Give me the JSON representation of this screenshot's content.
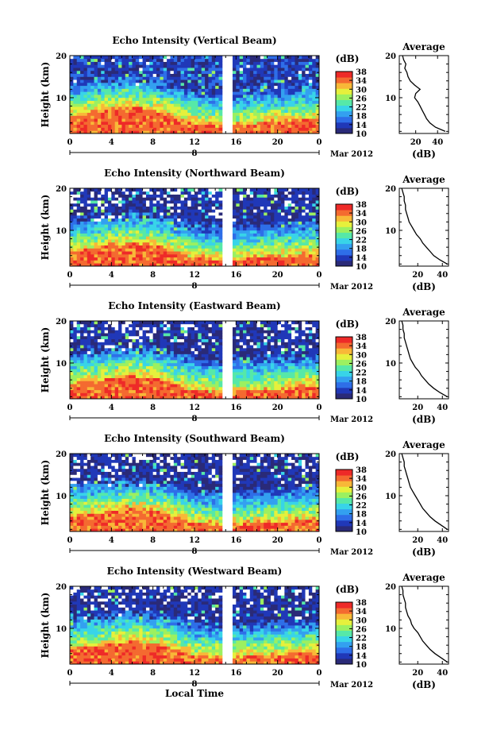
{
  "figure": {
    "xlabel": "Local Time",
    "date_label": "Mar 2012",
    "day_label": "8",
    "colorbar_unit": "(dB)",
    "colorbar_ticks": [
      "10",
      "14",
      "18",
      "22",
      "26",
      "30",
      "34",
      "38"
    ],
    "colorbar_range": [
      10,
      38
    ],
    "colormap": [
      "#2a2a78",
      "#2038b8",
      "#2e6ee8",
      "#33a0f0",
      "#38d4e8",
      "#56e8a8",
      "#9cf060",
      "#e6f03c",
      "#f8b838",
      "#f46a30",
      "#ee2a28"
    ],
    "profile_title": "Average",
    "profile_xlabel": "(dB)"
  },
  "chart_data": [
    {
      "type": "heatmap",
      "title": "Echo Intensity (Vertical Beam)",
      "ylabel": "Height (km)",
      "x_ticks": [
        "0",
        "4",
        "8",
        "12",
        "16",
        "20",
        "0"
      ],
      "xlim": [
        0,
        24
      ],
      "y_ticks": [
        "10",
        "20"
      ],
      "ylim": [
        1.5,
        20
      ],
      "data_gap_hours": [
        14.8,
        15.5
      ],
      "surface_layer_top_km": [
        5.5,
        7,
        8,
        6.5,
        4,
        3,
        4,
        4.5,
        5
      ],
      "profile": {
        "x_ticks": [
          "20",
          "40"
        ],
        "xlim": [
          5,
          50
        ],
        "height_km": [
          2,
          3,
          4,
          5,
          6,
          7,
          8,
          9,
          10,
          11,
          12,
          13,
          14,
          15,
          16,
          17,
          18,
          19,
          20
        ],
        "values_db": [
          47,
          38,
          33,
          30,
          28,
          26,
          24,
          22,
          19,
          20,
          24,
          19,
          15,
          13,
          12,
          10,
          11,
          9,
          8
        ]
      }
    },
    {
      "type": "heatmap",
      "title": "Echo Intensity (Northward Beam)",
      "ylabel": "Height (km)",
      "x_ticks": [
        "0",
        "4",
        "8",
        "12",
        "16",
        "20",
        "0"
      ],
      "xlim": [
        0,
        24
      ],
      "y_ticks": [
        "10",
        "20"
      ],
      "ylim": [
        1.5,
        20
      ],
      "data_gap_hours": [
        14.8,
        15.5
      ],
      "surface_layer_top_km": [
        5,
        6,
        7,
        6,
        3.5,
        3,
        3.5,
        4,
        4.5
      ],
      "profile": {
        "x_ticks": [
          "20",
          "40"
        ],
        "xlim": [
          5,
          45
        ],
        "height_km": [
          2,
          3,
          4,
          5,
          6,
          7,
          8,
          9,
          10,
          11,
          12,
          13,
          14,
          15,
          16,
          17,
          18,
          19,
          20
        ],
        "values_db": [
          44,
          38,
          33,
          30,
          27,
          24,
          22,
          19,
          17,
          15,
          13,
          12,
          11,
          10,
          10,
          9,
          9,
          8,
          7
        ]
      }
    },
    {
      "type": "heatmap",
      "title": "Echo Intensity (Eastward Beam)",
      "ylabel": "Height (km)",
      "x_ticks": [
        "0",
        "4",
        "8",
        "12",
        "16",
        "20",
        "0"
      ],
      "xlim": [
        0,
        24
      ],
      "y_ticks": [
        "10",
        "20"
      ],
      "ylim": [
        1.5,
        20
      ],
      "data_gap_hours": [
        14.8,
        15.5
      ],
      "surface_layer_top_km": [
        5,
        6,
        7,
        6,
        3.5,
        3,
        3.5,
        4,
        4.5
      ],
      "profile": {
        "x_ticks": [
          "20",
          "40"
        ],
        "xlim": [
          5,
          45
        ],
        "height_km": [
          2,
          3,
          4,
          5,
          6,
          7,
          8,
          9,
          10,
          11,
          12,
          13,
          14,
          15,
          16,
          17,
          18,
          19,
          20
        ],
        "values_db": [
          44,
          38,
          33,
          29,
          26,
          23,
          21,
          18,
          16,
          14,
          13,
          12,
          11,
          10,
          9,
          9,
          8,
          8,
          7
        ]
      }
    },
    {
      "type": "heatmap",
      "title": "Echo Intensity (Southward Beam)",
      "ylabel": "Height (km)",
      "x_ticks": [
        "0",
        "4",
        "8",
        "12",
        "16",
        "20",
        "0"
      ],
      "xlim": [
        0,
        24
      ],
      "y_ticks": [
        "10",
        "20"
      ],
      "ylim": [
        1.5,
        20
      ],
      "data_gap_hours": [
        14.8,
        15.5
      ],
      "surface_layer_top_km": [
        5,
        6,
        7,
        6,
        3.5,
        3,
        3.5,
        4,
        4.5
      ],
      "profile": {
        "x_ticks": [
          "20",
          "40"
        ],
        "xlim": [
          5,
          45
        ],
        "height_km": [
          2,
          3,
          4,
          5,
          6,
          7,
          8,
          9,
          10,
          11,
          12,
          13,
          14,
          15,
          16,
          17,
          18,
          19,
          20
        ],
        "values_db": [
          44,
          39,
          34,
          30,
          27,
          24,
          22,
          20,
          18,
          16,
          14,
          13,
          12,
          11,
          10,
          9,
          9,
          8,
          7
        ]
      }
    },
    {
      "type": "heatmap",
      "title": "Echo Intensity (Westward Beam)",
      "ylabel": "Height (km)",
      "x_ticks": [
        "0",
        "4",
        "8",
        "12",
        "16",
        "20",
        "0"
      ],
      "xlim": [
        0,
        24
      ],
      "y_ticks": [
        "10",
        "20"
      ],
      "ylim": [
        1.5,
        20
      ],
      "data_gap_hours": [
        14.8,
        15.5
      ],
      "surface_layer_top_km": [
        5,
        6,
        7,
        6,
        3.5,
        3,
        3.5,
        4,
        4.5
      ],
      "profile": {
        "x_ticks": [
          "20",
          "40"
        ],
        "xlim": [
          5,
          45
        ],
        "height_km": [
          2,
          3,
          4,
          5,
          6,
          7,
          8,
          9,
          10,
          11,
          12,
          13,
          14,
          15,
          16,
          17,
          18,
          19,
          20
        ],
        "values_db": [
          44,
          39,
          34,
          30,
          27,
          24,
          22,
          20,
          17,
          15,
          14,
          12,
          11,
          10,
          10,
          9,
          8,
          8,
          7
        ]
      }
    }
  ]
}
